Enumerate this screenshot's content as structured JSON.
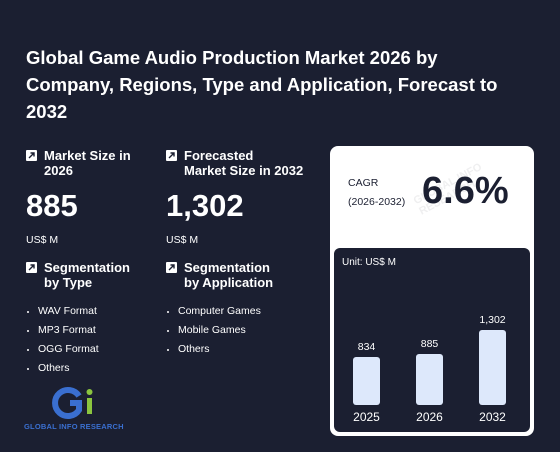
{
  "title": "Global Game Audio Production Market 2026 by Company, Regions, Type and Application, Forecast to 2032",
  "market_size": {
    "label": "Market Size in\n2026",
    "value": "885",
    "unit": "US$ M"
  },
  "forecast": {
    "label": "Forecasted\nMarket Size in 2032",
    "value": "1,302",
    "unit": "US$ M"
  },
  "segment_type": {
    "label": "Segmentation\nby Type",
    "items": [
      "WAV Format",
      "MP3 Format",
      "OGG Format",
      "Others"
    ]
  },
  "segment_app": {
    "label": "Segmentation\nby Application",
    "items": [
      "Computer Games",
      "Mobile Games",
      "Others"
    ]
  },
  "cagr": {
    "label": "CAGR\n(2026-2032)",
    "value": "6.6%"
  },
  "logo": {
    "text": "GLOBAL INFO RESEARCH"
  },
  "colors": {
    "background": "#1b1f31",
    "bar": "#dde8fb",
    "logo_blue": "#3a6fd0",
    "logo_green": "#8bc53f"
  },
  "chart_data": {
    "type": "bar",
    "unit_label": "Unit: US$ M",
    "categories": [
      "2025",
      "2026",
      "2032"
    ],
    "values": [
      834,
      885,
      1302
    ],
    "value_labels": [
      "834",
      "885",
      "1,302"
    ]
  }
}
